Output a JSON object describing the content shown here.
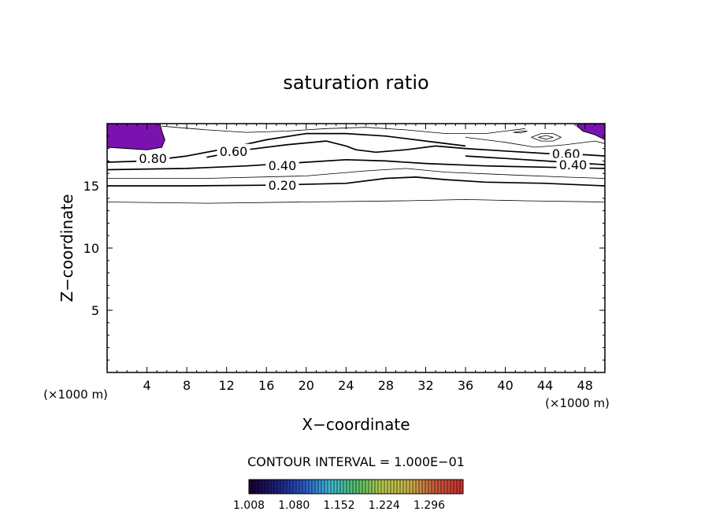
{
  "chart_data": {
    "type": "contour",
    "title": "saturation ratio",
    "xlabel": "X−coordinate",
    "ylabel": "Z−coordinate",
    "x_unit_left": "(×1000 m)",
    "x_unit_right": "(×1000 m)",
    "xlim": [
      0,
      50
    ],
    "ylim": [
      0,
      20
    ],
    "x_ticks": [
      4,
      8,
      12,
      16,
      20,
      24,
      28,
      32,
      36,
      40,
      44,
      48
    ],
    "y_ticks": [
      5,
      10,
      15
    ],
    "contour_interval_text": "CONTOUR INTERVAL = 1.000E−01",
    "contour_interval": 0.1,
    "colorbar": {
      "labels": [
        "1.008",
        "1.080",
        "1.152",
        "1.224",
        "1.296"
      ],
      "min": 1.008,
      "max": 1.35,
      "colors": [
        "#1a0033",
        "#1e1e7a",
        "#2b55c8",
        "#3fb8d6",
        "#4fbf6a",
        "#b5c84a",
        "#c8b44a",
        "#c85a3c",
        "#c83232"
      ]
    },
    "contours": [
      {
        "level": 0.1,
        "label": "",
        "points": [
          [
            0,
            13.7
          ],
          [
            10,
            13.6
          ],
          [
            20,
            13.7
          ],
          [
            30,
            13.8
          ],
          [
            36,
            13.9
          ],
          [
            42,
            13.8
          ],
          [
            50,
            13.7
          ]
        ]
      },
      {
        "level": 0.2,
        "label": "0.20",
        "points": [
          [
            0,
            15.0
          ],
          [
            8,
            15.0
          ],
          [
            16,
            15.05
          ],
          [
            24,
            15.2
          ],
          [
            28,
            15.6
          ],
          [
            31,
            15.7
          ],
          [
            34,
            15.5
          ],
          [
            38,
            15.3
          ],
          [
            44,
            15.2
          ],
          [
            50,
            15.0
          ]
        ]
      },
      {
        "level": 0.3,
        "label": "",
        "points": [
          [
            0,
            15.6
          ],
          [
            10,
            15.6
          ],
          [
            20,
            15.8
          ],
          [
            26,
            16.2
          ],
          [
            30,
            16.4
          ],
          [
            34,
            16.1
          ],
          [
            40,
            15.9
          ],
          [
            46,
            15.7
          ],
          [
            50,
            15.6
          ]
        ]
      },
      {
        "level": 0.4,
        "label": "0.40",
        "points": [
          [
            0,
            16.3
          ],
          [
            8,
            16.4
          ],
          [
            14,
            16.6
          ],
          [
            20,
            16.9
          ],
          [
            24,
            17.1
          ],
          [
            28,
            17.0
          ],
          [
            32,
            16.8
          ],
          [
            38,
            16.6
          ],
          [
            44,
            16.5
          ],
          [
            50,
            16.4
          ]
        ]
      },
      {
        "level": 0.4,
        "label": "0.40",
        "points": [
          [
            36,
            17.4
          ],
          [
            40,
            17.2
          ],
          [
            44,
            17.0
          ],
          [
            48,
            16.8
          ],
          [
            50,
            16.7
          ]
        ]
      },
      {
        "level": 0.6,
        "label": "0.60",
        "points": [
          [
            10,
            17.3
          ],
          [
            14,
            17.9
          ],
          [
            18,
            18.3
          ],
          [
            22,
            18.6
          ],
          [
            24,
            18.2
          ],
          [
            25,
            17.9
          ],
          [
            27,
            17.7
          ],
          [
            30,
            17.9
          ],
          [
            33,
            18.2
          ],
          [
            36,
            18.0
          ],
          [
            40,
            17.8
          ],
          [
            44,
            17.6
          ],
          [
            48,
            17.5
          ],
          [
            50,
            17.4
          ]
        ]
      },
      {
        "level": 0.8,
        "label": "0.80",
        "points": [
          [
            0,
            16.9
          ],
          [
            4,
            17.0
          ],
          [
            8,
            17.4
          ],
          [
            12,
            18.0
          ],
          [
            16,
            18.7
          ],
          [
            20,
            19.2
          ],
          [
            24,
            19.2
          ],
          [
            28,
            19.0
          ],
          [
            32,
            18.6
          ],
          [
            36,
            18.2
          ]
        ]
      },
      {
        "level": 0.8,
        "label": "",
        "points": [
          [
            36,
            18.9
          ],
          [
            40,
            18.5
          ],
          [
            43,
            18.1
          ],
          [
            46,
            18.3
          ],
          [
            49,
            18.6
          ],
          [
            50,
            18.4
          ]
        ]
      },
      {
        "level": 0.9,
        "label": "",
        "points": [
          [
            5.5,
            19.8
          ],
          [
            10,
            19.5
          ],
          [
            14,
            19.3
          ],
          [
            18,
            19.4
          ],
          [
            22,
            19.6
          ],
          [
            26,
            19.7
          ],
          [
            30,
            19.5
          ],
          [
            34,
            19.2
          ],
          [
            38,
            19.2
          ],
          [
            42,
            19.6
          ]
        ]
      },
      {
        "level": 0.9,
        "label": "",
        "points": [
          [
            42.6,
            18.9
          ],
          [
            43.6,
            18.6
          ],
          [
            44.8,
            18.6
          ],
          [
            45.6,
            18.9
          ],
          [
            44.8,
            19.2
          ],
          [
            43.6,
            19.2
          ],
          [
            42.6,
            18.9
          ]
        ]
      },
      {
        "level": 0.9,
        "label": "",
        "points": [
          [
            43.3,
            18.9
          ],
          [
            44.1,
            18.75
          ],
          [
            44.8,
            18.9
          ],
          [
            44.1,
            19.05
          ],
          [
            43.3,
            18.9
          ]
        ]
      },
      {
        "level": 0.9,
        "label": "",
        "points": [
          [
            40.8,
            19.3
          ],
          [
            41.6,
            19.4
          ],
          [
            42.2,
            19.4
          ],
          [
            41.6,
            19.25
          ],
          [
            40.8,
            19.3
          ]
        ]
      }
    ],
    "contour_labels": [
      {
        "text": "0.20",
        "x": 17.6,
        "y": 15.05
      },
      {
        "text": "0.40",
        "x": 17.6,
        "y": 16.65
      },
      {
        "text": "0.60",
        "x": 12.7,
        "y": 17.8
      },
      {
        "text": "0.80",
        "x": 4.6,
        "y": 17.2
      },
      {
        "text": "0.60",
        "x": 46.1,
        "y": 17.6
      },
      {
        "text": "0.40",
        "x": 46.8,
        "y": 16.7
      }
    ],
    "shaded_regions": [
      {
        "value": "1.008",
        "color": "#7a12b0",
        "points": [
          [
            0,
            20
          ],
          [
            5.3,
            20
          ],
          [
            5.5,
            19.4
          ],
          [
            5.8,
            18.7
          ],
          [
            5.5,
            18.1
          ],
          [
            4.0,
            17.9
          ],
          [
            2.0,
            18.0
          ],
          [
            0,
            18.1
          ]
        ]
      },
      {
        "value": "1.008",
        "color": "#7a12b0",
        "points": [
          [
            47.2,
            20
          ],
          [
            50,
            20
          ],
          [
            50,
            18.7
          ],
          [
            49.0,
            19.1
          ],
          [
            47.8,
            19.4
          ],
          [
            47.2,
            19.8
          ]
        ]
      }
    ]
  }
}
